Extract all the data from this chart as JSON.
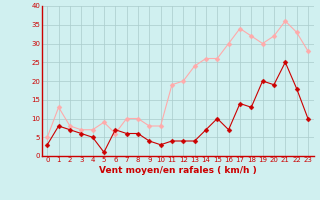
{
  "x": [
    0,
    1,
    2,
    3,
    4,
    5,
    6,
    7,
    8,
    9,
    10,
    11,
    12,
    13,
    14,
    15,
    16,
    17,
    18,
    19,
    20,
    21,
    22,
    23
  ],
  "wind_avg": [
    3,
    8,
    7,
    6,
    5,
    1,
    7,
    6,
    6,
    4,
    3,
    4,
    4,
    4,
    7,
    10,
    7,
    14,
    13,
    20,
    19,
    25,
    18,
    10
  ],
  "wind_gust": [
    5,
    13,
    8,
    7,
    7,
    9,
    6,
    10,
    10,
    8,
    8,
    19,
    20,
    24,
    26,
    26,
    30,
    34,
    32,
    30,
    32,
    36,
    33,
    28
  ],
  "avg_color": "#cc0000",
  "gust_color": "#ffaaaa",
  "bg_color": "#d0f0f0",
  "grid_color": "#aacccc",
  "xlabel": "Vent moyen/en rafales ( km/h )",
  "xlabel_color": "#cc0000",
  "ylim": [
    0,
    40
  ],
  "yticks": [
    0,
    5,
    10,
    15,
    20,
    25,
    30,
    35,
    40
  ],
  "xticks": [
    0,
    1,
    2,
    3,
    4,
    5,
    6,
    7,
    8,
    9,
    10,
    11,
    12,
    13,
    14,
    15,
    16,
    17,
    18,
    19,
    20,
    21,
    22,
    23
  ],
  "markersize": 2.5,
  "linewidth": 0.8,
  "tick_fontsize": 5.0,
  "xlabel_fontsize": 6.5
}
